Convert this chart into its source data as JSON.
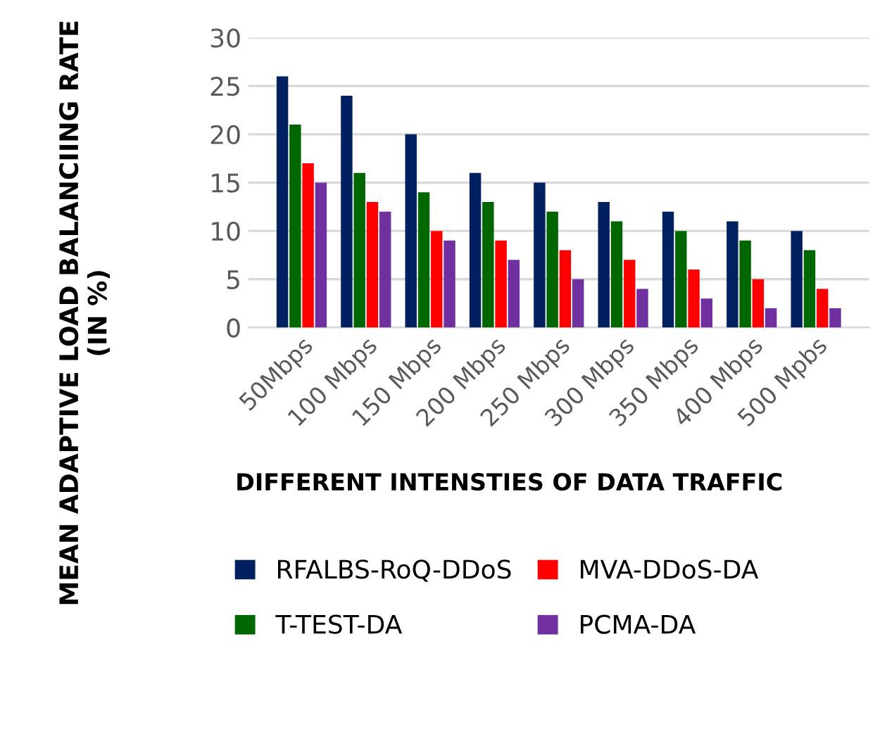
{
  "chart_data": {
    "type": "bar",
    "xlabel": "DIFFERENT INTENSTIES OF DATA TRAFFIC",
    "ylabel": "MEAN ADAPTIVE LOAD BALANCIING RATE (IN %)",
    "categories": [
      "50Mbps",
      "100 Mbps",
      "150 Mbps",
      "200 Mbps",
      "250 Mbps",
      "300 Mbps",
      "350 Mbps",
      "400 Mbps",
      "500 Mpbs"
    ],
    "series": [
      {
        "name": "RFALBS-RoQ-DDoS",
        "color": "#002060",
        "values": [
          26,
          24,
          20,
          16,
          15,
          13,
          12,
          11,
          10
        ]
      },
      {
        "name": "T-TEST-DA",
        "color": "#006600",
        "values": [
          21,
          16,
          14,
          13,
          12,
          11,
          10,
          9,
          8
        ]
      },
      {
        "name": "MVA-DDoS-DA",
        "color": "#ff0000",
        "values": [
          17,
          13,
          10,
          9,
          8,
          7,
          6,
          5,
          4
        ]
      },
      {
        "name": "PCMA-DA",
        "color": "#7030a0",
        "values": [
          15,
          12,
          9,
          7,
          5,
          4,
          3,
          2,
          2
        ]
      }
    ],
    "ylim": [
      0,
      30
    ],
    "yticks": [
      0,
      5,
      10,
      15,
      20,
      25,
      30
    ],
    "grid": "y",
    "legend": "bottom"
  }
}
